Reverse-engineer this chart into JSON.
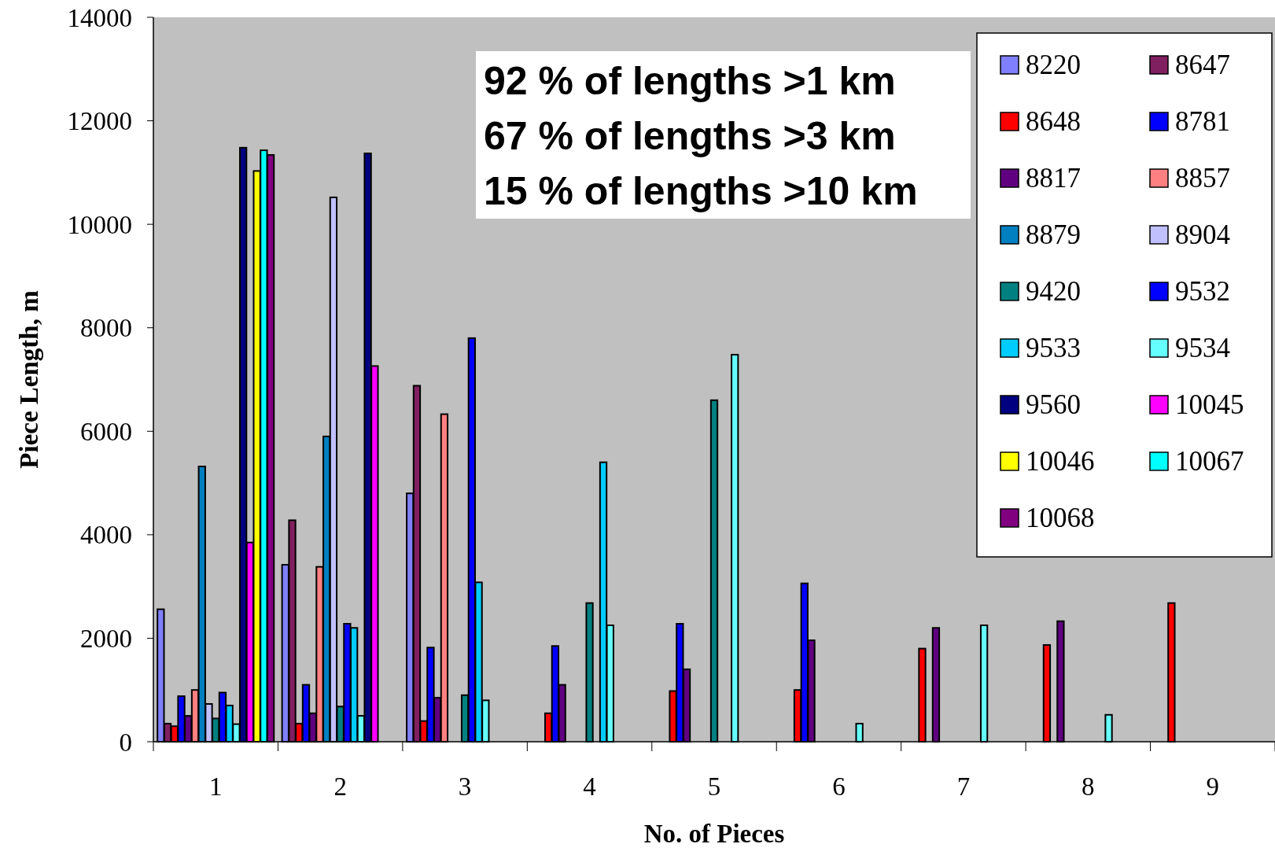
{
  "chart_data": {
    "type": "bar",
    "xlabel": "No. of Pieces",
    "ylabel": "Piece Length, m",
    "categories": [
      "1",
      "2",
      "3",
      "4",
      "5",
      "6",
      "7",
      "8",
      "9"
    ],
    "ylim": [
      0,
      14000
    ],
    "yticks": [
      0,
      2000,
      4000,
      6000,
      8000,
      10000,
      12000,
      14000
    ],
    "grid": false,
    "legend": "top right",
    "annotations": [
      "92 % of lengths >1 km",
      "67 % of lengths >3 km",
      "15 % of lengths >10 km"
    ],
    "series": [
      {
        "name": "8220",
        "color": "#8080ff",
        "values": [
          2560,
          3420,
          4800,
          null,
          null,
          null,
          null,
          null,
          null
        ]
      },
      {
        "name": "8647",
        "color": "#802060",
        "values": [
          350,
          4280,
          6880,
          null,
          null,
          null,
          null,
          null,
          null
        ]
      },
      {
        "name": "8648",
        "color": "#ff0000",
        "values": [
          300,
          350,
          400,
          550,
          980,
          1000,
          1800,
          1870,
          2680
        ]
      },
      {
        "name": "8781",
        "color": "#0000ff",
        "values": [
          880,
          1100,
          1820,
          1850,
          2280,
          3060,
          null,
          null,
          null
        ]
      },
      {
        "name": "8817",
        "color": "#600080",
        "values": [
          500,
          550,
          850,
          1100,
          1400,
          1960,
          2200,
          2330,
          null
        ]
      },
      {
        "name": "8857",
        "color": "#ff8080",
        "values": [
          1000,
          3380,
          6330,
          null,
          null,
          null,
          null,
          null,
          null
        ]
      },
      {
        "name": "8879",
        "color": "#0080c0",
        "values": [
          5320,
          5900,
          null,
          null,
          null,
          null,
          null,
          null,
          null
        ]
      },
      {
        "name": "8904",
        "color": "#c0c0ff",
        "values": [
          730,
          10520,
          null,
          null,
          null,
          null,
          null,
          null,
          null
        ]
      },
      {
        "name": "9420",
        "color": "#008080",
        "values": [
          450,
          680,
          900,
          2680,
          6600,
          null,
          null,
          null,
          null
        ]
      },
      {
        "name": "9532",
        "color": "#0000ff",
        "values": [
          950,
          2280,
          7800,
          null,
          null,
          null,
          null,
          null,
          null
        ]
      },
      {
        "name": "9533",
        "color": "#00ccff",
        "values": [
          700,
          2200,
          3080,
          5400,
          null,
          null,
          null,
          null,
          null
        ]
      },
      {
        "name": "9534",
        "color": "#66ffff",
        "values": [
          340,
          500,
          800,
          2250,
          7480,
          350,
          2250,
          520,
          null
        ]
      },
      {
        "name": "9560",
        "color": "#000080",
        "values": [
          11480,
          11370,
          null,
          null,
          null,
          null,
          null,
          null,
          null
        ]
      },
      {
        "name": "10045",
        "color": "#ff00ff",
        "values": [
          3850,
          7260,
          null,
          null,
          null,
          null,
          null,
          null,
          null
        ]
      },
      {
        "name": "10046",
        "color": "#ffff00",
        "values": [
          11030,
          null,
          null,
          null,
          null,
          null,
          null,
          null,
          null
        ]
      },
      {
        "name": "10067",
        "color": "#00ffff",
        "values": [
          11430,
          null,
          null,
          null,
          null,
          null,
          null,
          null,
          null
        ]
      },
      {
        "name": "10068",
        "color": "#800080",
        "values": [
          11340,
          null,
          null,
          null,
          null,
          null,
          null,
          null,
          null
        ]
      }
    ]
  }
}
